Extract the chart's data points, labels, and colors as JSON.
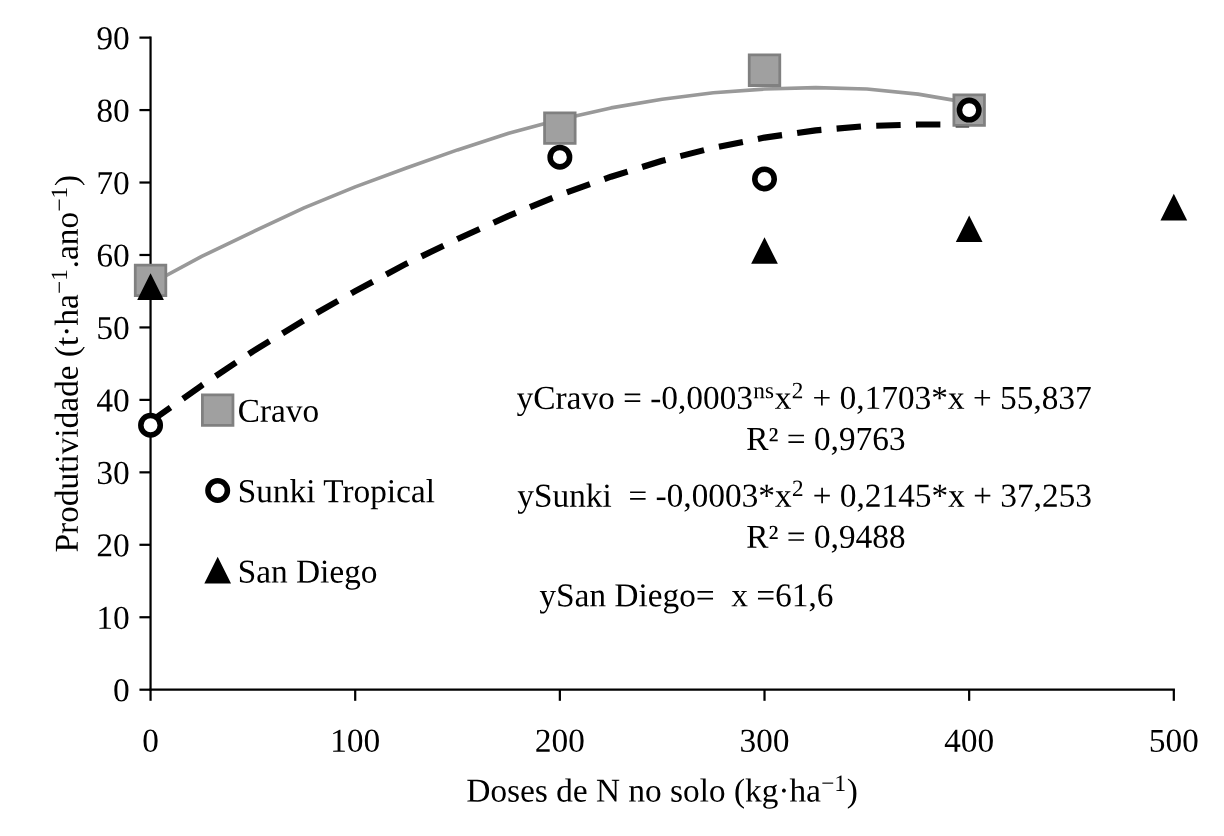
{
  "chart_data": {
    "type": "scatter",
    "xlabel": "Doses de N no solo (kg·ha$^{−1}$)",
    "ylabel": "Produtividade (t·ha$^{−1}$.ano$^{−1}$)",
    "xlim": [
      0,
      500
    ],
    "xticks": [
      0,
      100,
      200,
      300,
      400,
      500
    ],
    "ylim": [
      0,
      90
    ],
    "yticks": [
      0,
      10,
      20,
      30,
      40,
      50,
      60,
      70,
      80,
      90
    ],
    "grid": false,
    "legend": "left",
    "series": [
      {
        "name": "Cravo",
        "marker": "square",
        "color": "#a0a0a0",
        "x": [
          0,
          200,
          300,
          400
        ],
        "values": [
          56.5,
          77.5,
          85.5,
          80
        ]
      },
      {
        "name": "Sunki Tropical",
        "marker": "circle",
        "color": "#000000",
        "x": [
          0,
          200,
          300,
          400
        ],
        "values": [
          36.5,
          73.5,
          70.5,
          80
        ]
      },
      {
        "name": "San Diego",
        "marker": "triangle",
        "color": "#000000",
        "x": [
          0,
          300,
          400,
          500
        ],
        "values": [
          55.5,
          60.5,
          63.5,
          66.5
        ]
      },
      {
        "type": "line",
        "line_style": "solid",
        "color": "#999999",
        "x": [
          0,
          25,
          50,
          75,
          100,
          125,
          150,
          175,
          200,
          225,
          250,
          275,
          300,
          325,
          350,
          375,
          400
        ],
        "values": [
          56,
          59.8,
          63.2,
          66.5,
          69.4,
          72,
          74.5,
          76.8,
          78.7,
          80.3,
          81.5,
          82.4,
          82.9,
          83.1,
          82.9,
          82.2,
          81
        ]
      },
      {
        "type": "line",
        "line_style": "dashed",
        "color": "#000000",
        "x": [
          0,
          25,
          50,
          75,
          100,
          125,
          150,
          175,
          200,
          225,
          250,
          275,
          300,
          325,
          350,
          375,
          400
        ],
        "values": [
          37,
          42,
          46.7,
          51,
          55,
          58.8,
          62.2,
          65.4,
          68.3,
          70.8,
          73,
          74.8,
          76.2,
          77.2,
          77.8,
          78,
          78
        ]
      }
    ],
    "annotations": [
      "yCravo = -0,0003$^{ns}$x$^{2}$ + 0,1703*x + 55,837",
      "R² = 0,9763",
      "ySunki  = -0,0003*x$^{2}$ + 0,2145*x + 37,253",
      "R² = 0,9488",
      "ySan Diego=  x =61,6"
    ]
  }
}
